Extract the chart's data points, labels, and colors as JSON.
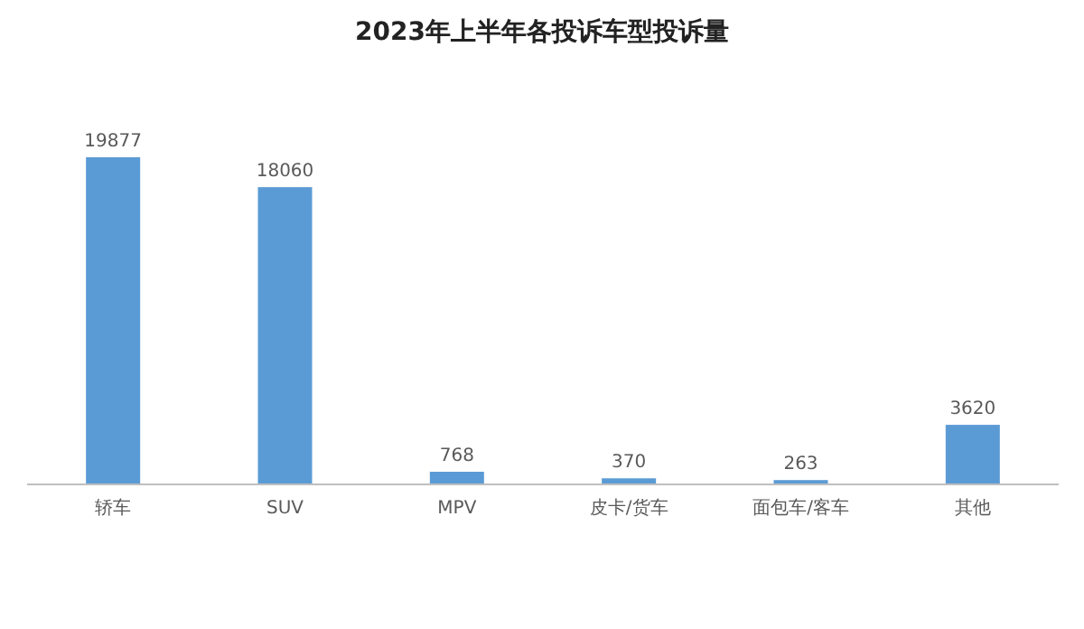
{
  "chart_data": {
    "type": "bar",
    "title": "2023年上半年各投诉车型投诉量",
    "categories": [
      "轿车",
      "SUV",
      "MPV",
      "皮卡/货车",
      "面包车/客车",
      "其他"
    ],
    "values": [
      19877,
      18060,
      768,
      370,
      263,
      3620
    ],
    "color": "#5b9bd5",
    "data_labels": true,
    "tick_labels": "x"
  }
}
